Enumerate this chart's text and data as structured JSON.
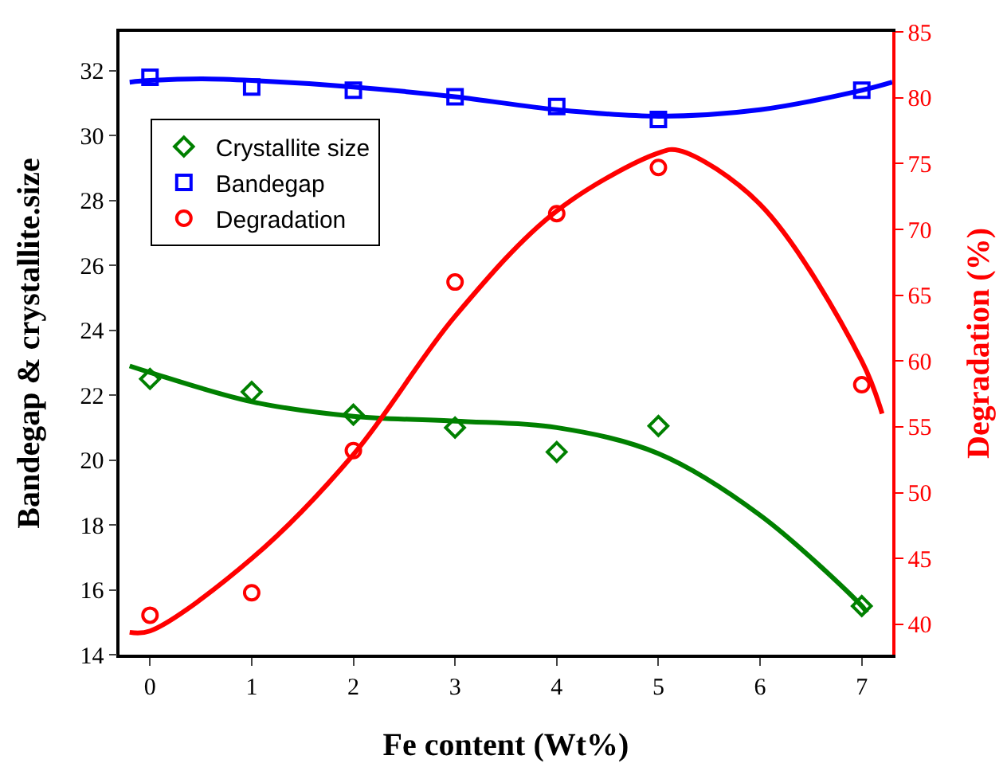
{
  "chart_data": {
    "type": "scatter",
    "xlabel": "Fe content (Wt%)",
    "ylabel": "Bandegap & crystallite.size",
    "y2label": "Degradation (%)",
    "xlim": [
      -0.3,
      7.3
    ],
    "xticks": [
      0,
      1,
      2,
      3,
      4,
      5,
      6,
      7
    ],
    "ylim": [
      14,
      33.2
    ],
    "yticks": [
      14,
      16,
      18,
      20,
      22,
      24,
      26,
      28,
      30,
      32
    ],
    "y2lim": [
      37.7,
      85
    ],
    "y2ticks": [
      40,
      45,
      50,
      55,
      60,
      65,
      70,
      75,
      80,
      85
    ],
    "grid": false,
    "legend": "top left",
    "x": [
      0,
      1,
      2,
      3,
      4,
      5,
      7
    ],
    "series": [
      {
        "name": "Crystallite size",
        "marker": "diamond",
        "color": "#008000",
        "values": [
          22.5,
          22.1,
          21.4,
          21.0,
          20.25,
          21.05,
          15.5
        ]
      },
      {
        "name": "Bandegap",
        "marker": "square",
        "color": "#0000ff",
        "values": [
          31.8,
          31.5,
          31.4,
          31.2,
          30.9,
          30.5,
          31.4
        ]
      },
      {
        "name": "Degradation",
        "marker": "circle",
        "axis": "y2",
        "color": "#ff0000",
        "values": [
          40.7,
          42.4,
          53.2,
          66.0,
          71.2,
          74.7,
          58.2
        ]
      },
      {
        "type": "line",
        "color": "#008000",
        "x": [
          -0.2,
          0,
          1,
          2,
          3,
          4,
          5,
          6,
          7,
          7.05
        ],
        "values": [
          22.9,
          22.7,
          21.8,
          21.35,
          21.2,
          21.0,
          20.2,
          18.3,
          15.5,
          15.3
        ]
      },
      {
        "type": "line",
        "color": "#0000ff",
        "x": [
          -0.2,
          0,
          0.5,
          1,
          2,
          3,
          4,
          5,
          6,
          7,
          7.3
        ],
        "values": [
          31.65,
          31.7,
          31.75,
          31.7,
          31.5,
          31.2,
          30.8,
          30.6,
          30.8,
          31.4,
          31.65
        ]
      },
      {
        "type": "line",
        "axis": "y2",
        "color": "#ff0000",
        "x": [
          -0.2,
          0,
          1,
          2,
          3,
          4,
          5,
          5.2,
          6,
          7,
          7.2
        ],
        "values": [
          39.4,
          39.5,
          45.0,
          52.9,
          63.4,
          71.4,
          75.8,
          76.0,
          71.9,
          60.0,
          56.0
        ]
      }
    ]
  }
}
